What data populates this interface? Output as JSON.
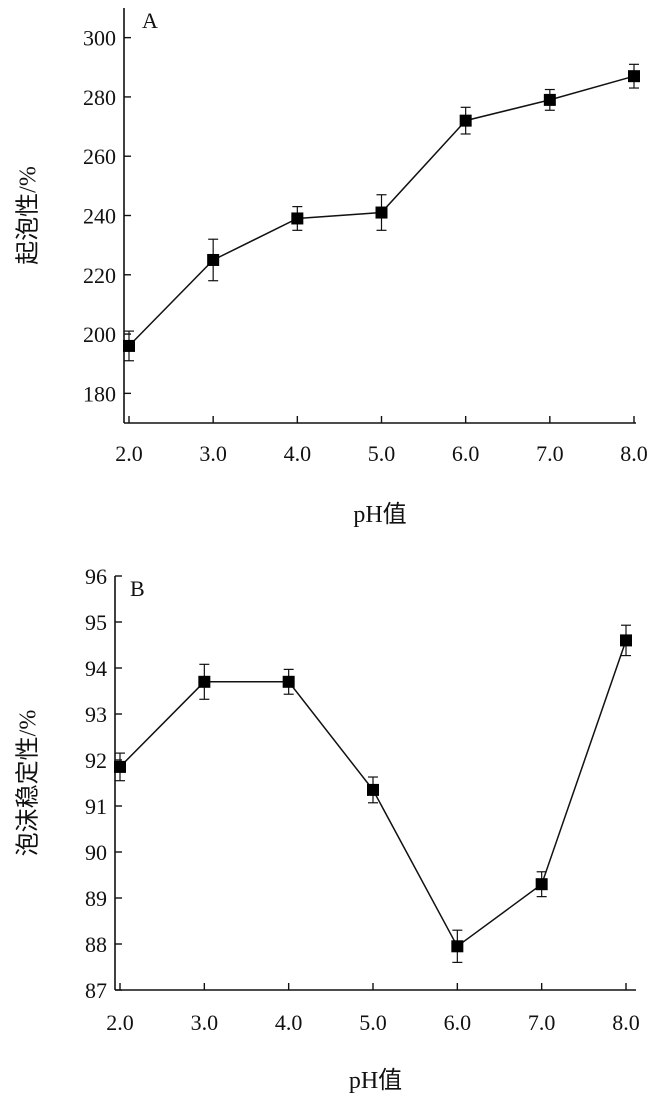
{
  "chart_data": [
    {
      "type": "line",
      "panel_label": "A",
      "xlabel": "pH值",
      "ylabel": "起泡性/%",
      "x_tick_labels": [
        "2.0",
        "3.0",
        "4.0",
        "5.0",
        "6.0",
        "7.0",
        "8.0"
      ],
      "y_tick_labels": [
        "180",
        "200",
        "220",
        "240",
        "260",
        "280",
        "300"
      ],
      "x": [
        2,
        3,
        4,
        5,
        6,
        7,
        8
      ],
      "y": [
        196,
        225,
        239,
        241,
        272,
        279,
        287
      ],
      "error": [
        5,
        7,
        4,
        6,
        4.5,
        3.5,
        4
      ],
      "xlim": [
        2,
        8
      ],
      "ylim": [
        170,
        310
      ],
      "yticks": [
        180,
        200,
        220,
        240,
        260,
        280,
        300
      ],
      "grid": false,
      "marker": "square",
      "color": "#000000"
    },
    {
      "type": "line",
      "panel_label": "B",
      "xlabel": "pH值",
      "ylabel": "泡沫稳定性/%",
      "x_tick_labels": [
        "2.0",
        "3.0",
        "4.0",
        "5.0",
        "6.0",
        "7.0",
        "8.0"
      ],
      "y_tick_labels": [
        "87",
        "88",
        "89",
        "90",
        "91",
        "92",
        "93",
        "94",
        "95",
        "96"
      ],
      "x": [
        2,
        3,
        4,
        5,
        6,
        7,
        8
      ],
      "y": [
        91.85,
        93.7,
        93.7,
        91.35,
        87.95,
        89.3,
        94.6
      ],
      "error": [
        0.3,
        0.38,
        0.27,
        0.28,
        0.35,
        0.27,
        0.33
      ],
      "xlim": [
        2,
        8
      ],
      "ylim": [
        87,
        96
      ],
      "yticks": [
        87,
        88,
        89,
        90,
        91,
        92,
        93,
        94,
        95,
        96
      ],
      "grid": false,
      "marker": "square",
      "color": "#000000"
    }
  ]
}
